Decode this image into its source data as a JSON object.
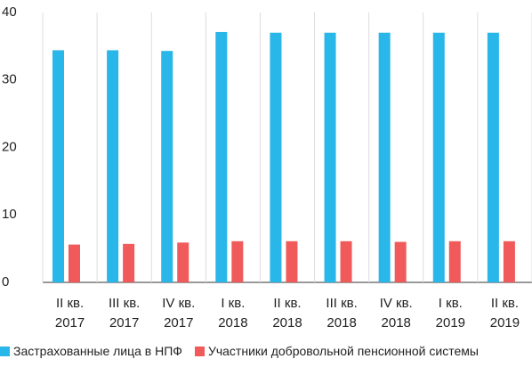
{
  "chart_data": {
    "type": "bar",
    "categories": [
      "II кв. 2017",
      "III кв. 2017",
      "IV кв. 2017",
      "I кв. 2018",
      "II кв. 2018",
      "III кв. 2018",
      "IV кв. 2018",
      "I кв. 2019",
      "II кв. 2019"
    ],
    "series": [
      {
        "name": "Застрахованные лица в НПФ",
        "color": "#29b6e8",
        "values": [
          34.4,
          34.4,
          34.3,
          37.1,
          37.0,
          37.0,
          37.0,
          37.0,
          37.0
        ]
      },
      {
        "name": "Участники добровольной пенсионной системы",
        "color": "#f05a5a",
        "values": [
          5.6,
          5.7,
          5.9,
          6.1,
          6.1,
          6.1,
          6.0,
          6.1,
          6.1
        ]
      }
    ],
    "ylim": [
      0,
      40
    ],
    "yticks": [
      0,
      10,
      20,
      30,
      40
    ],
    "grid": true,
    "legend": "bottom"
  }
}
